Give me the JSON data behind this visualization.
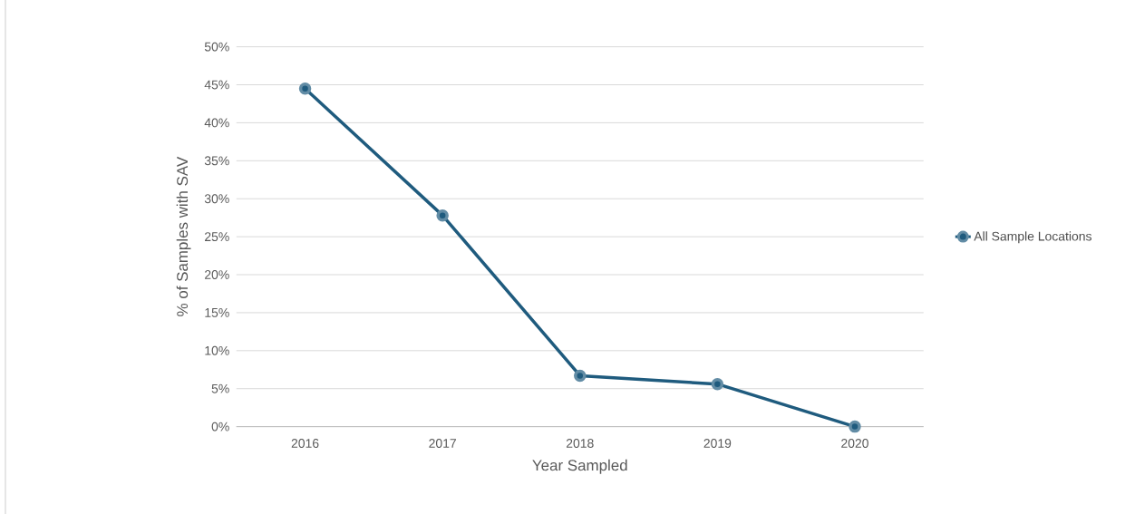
{
  "chart_data": {
    "type": "line",
    "xlabel": "Year Sampled",
    "ylabel": "% of Samples with SAV",
    "categories": [
      "2016",
      "2017",
      "2018",
      "2019",
      "2020"
    ],
    "series": [
      {
        "name": "All Sample Locations",
        "color": "#1f5b7e",
        "values": [
          44.5,
          27.8,
          6.7,
          5.6,
          0
        ]
      }
    ],
    "ylim": [
      0,
      50
    ],
    "yticks": [
      {
        "value": 0,
        "label": "0%"
      },
      {
        "value": 5,
        "label": "5%"
      },
      {
        "value": 10,
        "label": "10%"
      },
      {
        "value": 15,
        "label": "15%"
      },
      {
        "value": 20,
        "label": "20%"
      },
      {
        "value": 25,
        "label": "25%"
      },
      {
        "value": 30,
        "label": "30%"
      },
      {
        "value": 35,
        "label": "35%"
      },
      {
        "value": 40,
        "label": "40%"
      },
      {
        "value": 45,
        "label": "45%"
      },
      {
        "value": 50,
        "label": "50%"
      }
    ],
    "grid": "y",
    "legend": "right",
    "marker": "circle",
    "line_style": "solid"
  }
}
